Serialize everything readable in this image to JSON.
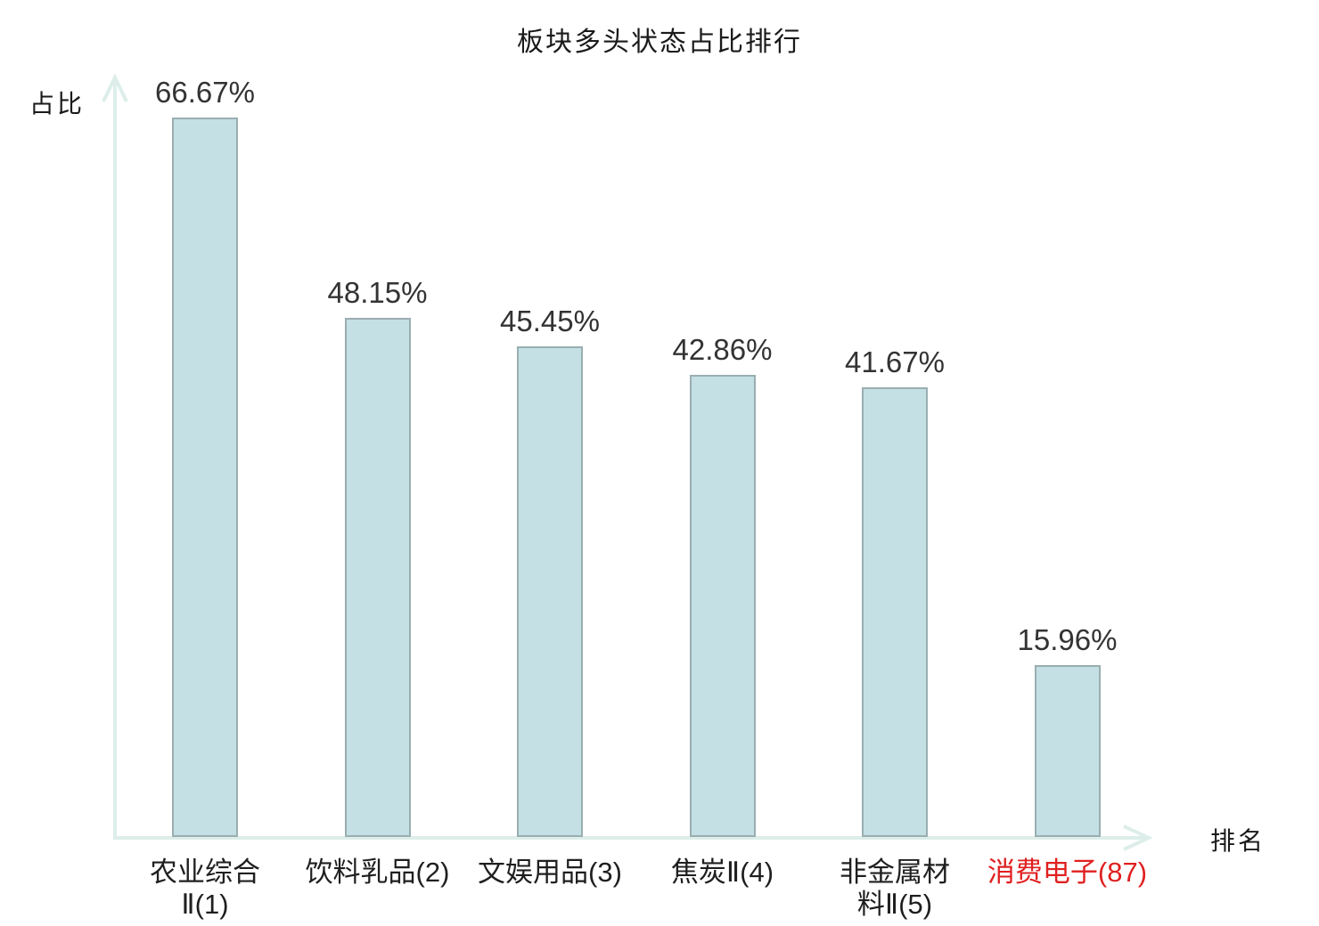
{
  "chart_data": {
    "type": "bar",
    "title": "板块多头状态占比排行",
    "xlabel": "排名",
    "ylabel": "占比",
    "categories": [
      "农业综合Ⅱ(1)",
      "饮料乳品(2)",
      "文娱用品(3)",
      "焦炭Ⅱ(4)",
      "非金属材料Ⅱ(5)",
      "消费电子(87)"
    ],
    "display_labels": [
      "农业综合\nⅡ(1)",
      "饮料乳品(2)",
      "文娱用品(3)",
      "焦炭Ⅱ(4)",
      "非金属材\n料Ⅱ(5)",
      "消费电子(87)"
    ],
    "values": [
      66.67,
      48.15,
      45.45,
      42.86,
      41.67,
      15.96
    ],
    "value_labels": [
      "66.67%",
      "48.15%",
      "45.45%",
      "42.86%",
      "41.67%",
      "15.96%"
    ],
    "highlight_index": 5,
    "ylim": [
      0,
      70
    ],
    "grid": false,
    "legend": null
  },
  "colors": {
    "bar_fill": "#c4e0e4",
    "bar_border": "#9aaeb1",
    "axis": "#ddeeea",
    "value_text": "#333333",
    "category_text": "#1f1f1f",
    "highlight_text": "#e02020",
    "background": "#ffffff"
  }
}
